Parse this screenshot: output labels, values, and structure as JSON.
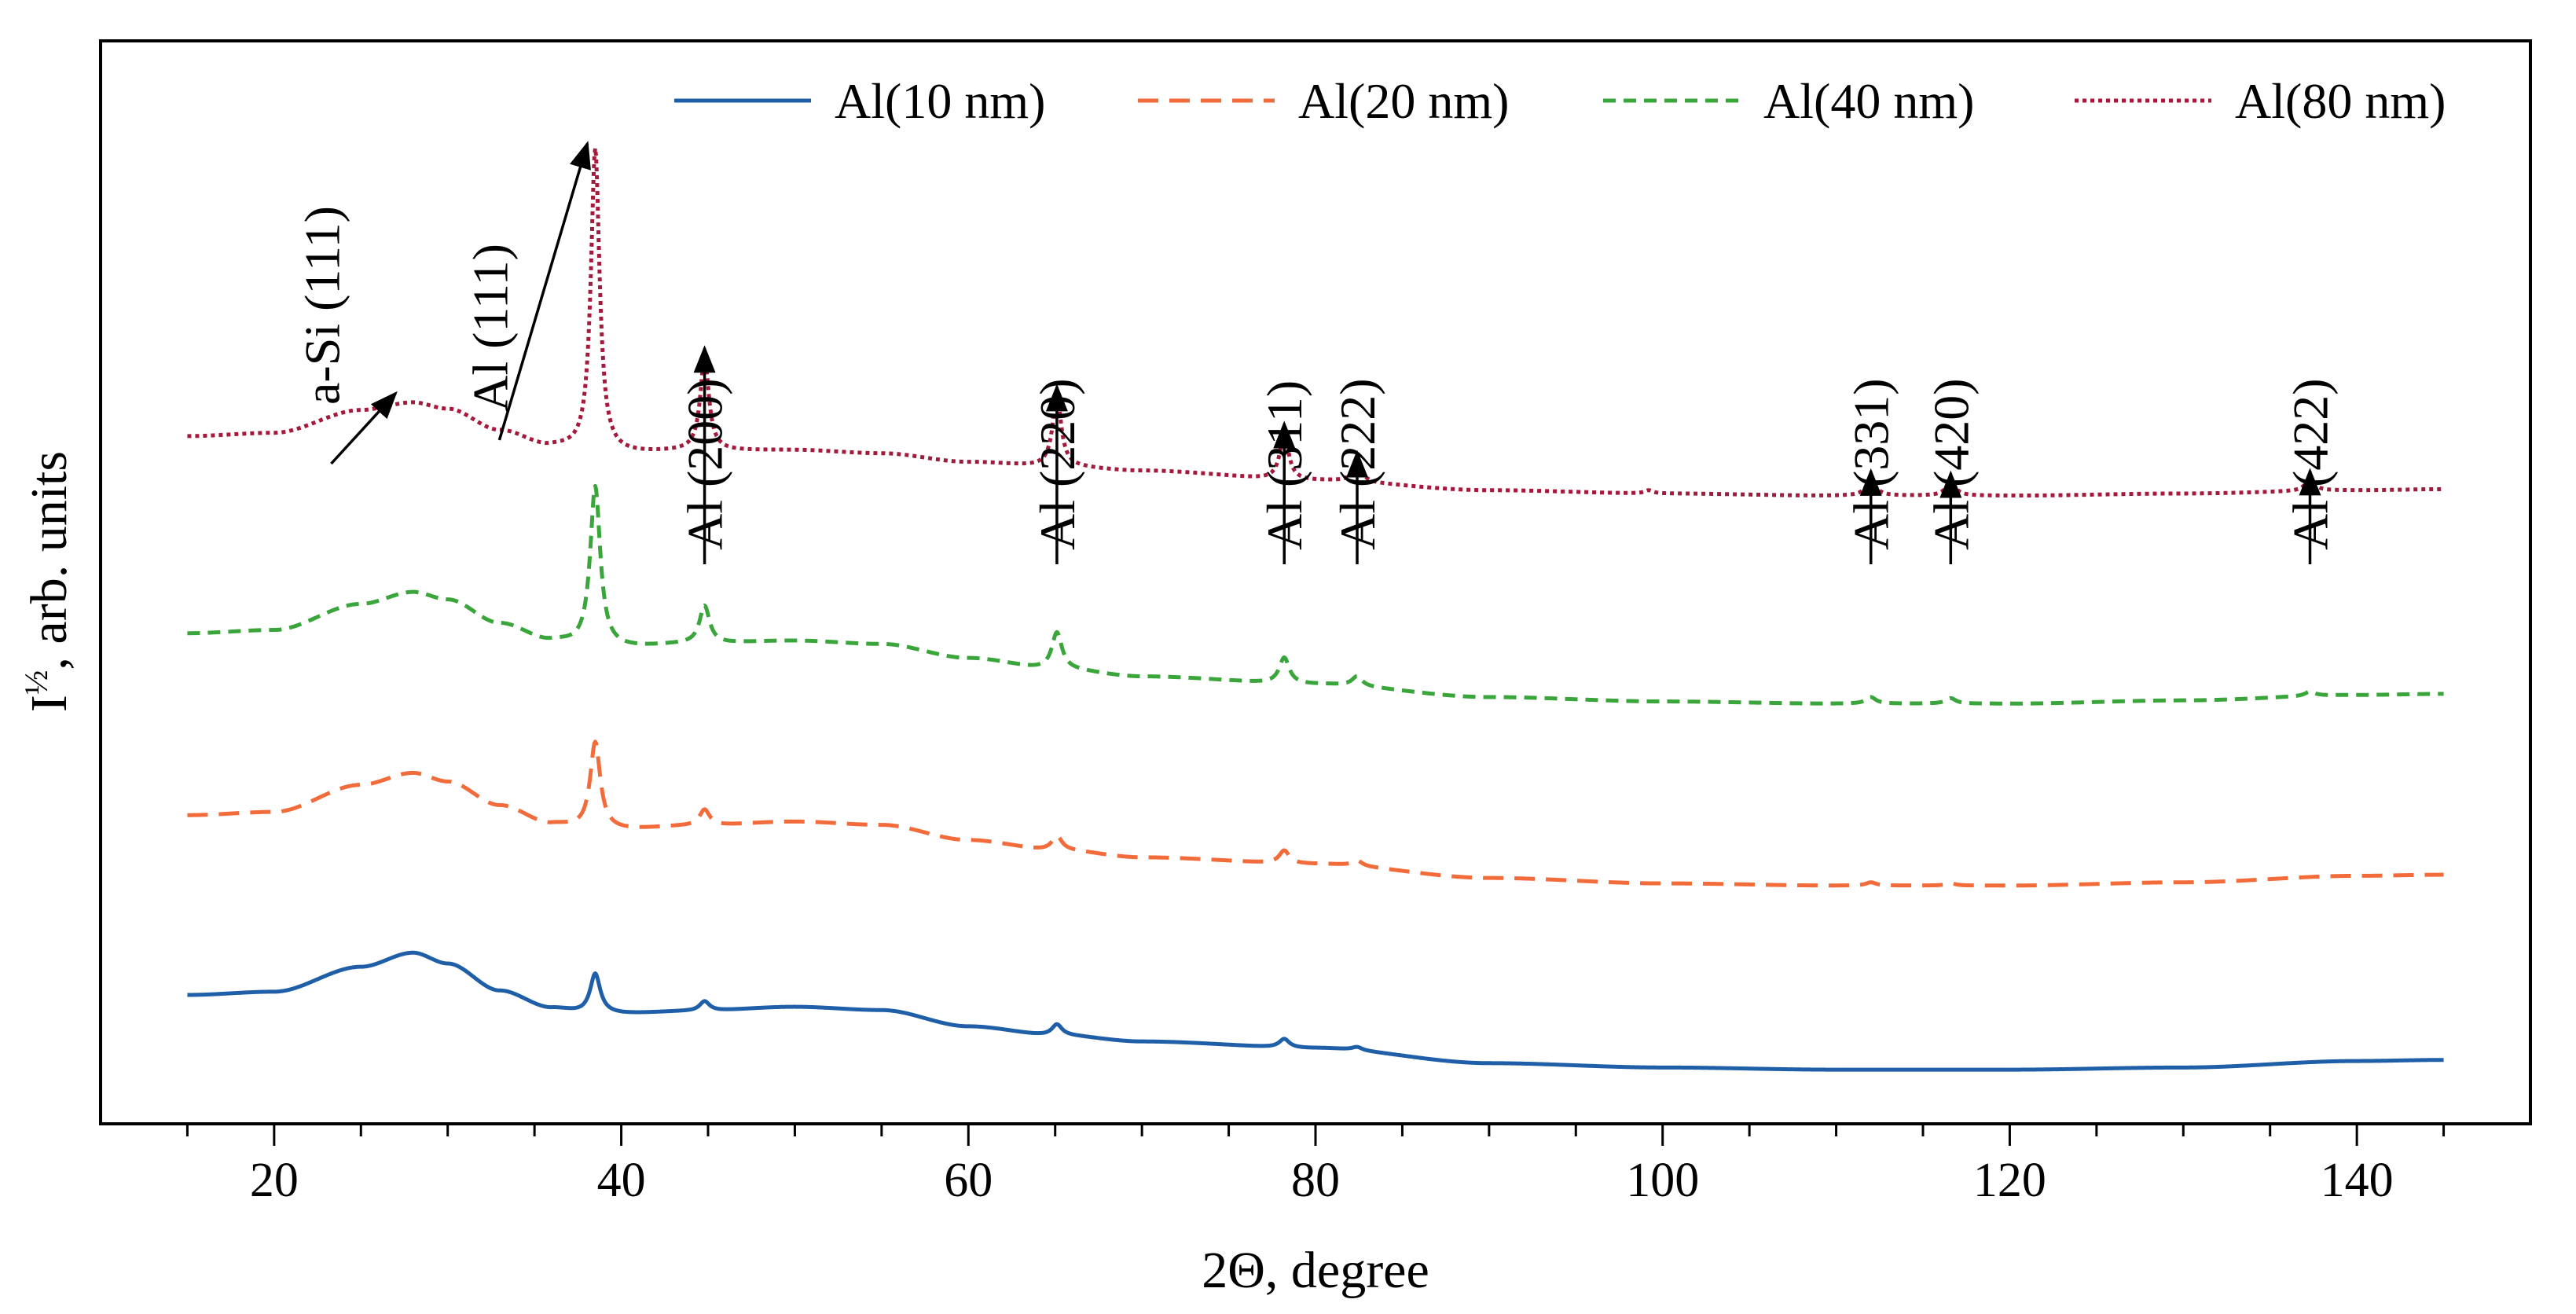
{
  "chart_data": {
    "type": "line",
    "title": "",
    "xlabel": "2Θ, degree",
    "ylabel_main": "I",
    "ylabel_sup": "½",
    "ylabel_rest": ", arb. units",
    "xlim": [
      10,
      150
    ],
    "xticks": [
      20,
      40,
      60,
      80,
      100,
      120,
      140
    ],
    "xtick_labels": [
      "20",
      "40",
      "60",
      "80",
      "100",
      "120",
      "140"
    ],
    "x_minor_step": 5,
    "ylim": [
      0,
      100
    ],
    "y_ticks_shown": false,
    "grid": false,
    "legend_position": "top-right",
    "x_range_data": [
      15,
      145
    ],
    "series": [
      {
        "name": "Al(10 nm)",
        "color": "#1f5fa8",
        "dash": "solid",
        "baseline": [
          [
            15,
            11.9
          ],
          [
            20,
            12.2
          ],
          [
            25,
            14.5
          ],
          [
            28,
            15.8
          ],
          [
            30,
            14.8
          ],
          [
            33,
            12.3
          ],
          [
            36,
            10.7
          ],
          [
            38,
            10.3
          ],
          [
            40,
            10.2
          ],
          [
            44,
            10.4
          ],
          [
            50,
            10.8
          ],
          [
            55,
            10.5
          ],
          [
            60,
            9.0
          ],
          [
            65,
            8.2
          ],
          [
            70,
            7.6
          ],
          [
            80,
            7.0
          ],
          [
            90,
            5.6
          ],
          [
            100,
            5.2
          ],
          [
            110,
            5.0
          ],
          [
            120,
            5.0
          ],
          [
            130,
            5.2
          ],
          [
            140,
            5.8
          ],
          [
            145,
            5.9
          ]
        ],
        "peaks": [
          [
            38.5,
            3.6,
            0.35
          ],
          [
            44.8,
            0.9,
            0.35
          ],
          [
            65.1,
            1.0,
            0.35
          ],
          [
            78.2,
            0.8,
            0.35
          ],
          [
            82.4,
            0.3,
            0.35
          ]
        ]
      },
      {
        "name": "Al(20 nm)",
        "color": "#f26b3a",
        "dash": "long-dash",
        "baseline": [
          [
            15,
            28.5
          ],
          [
            20,
            28.8
          ],
          [
            25,
            31.3
          ],
          [
            28,
            32.4
          ],
          [
            30,
            31.6
          ],
          [
            33,
            29.4
          ],
          [
            36,
            27.7
          ],
          [
            38,
            27.3
          ],
          [
            40,
            27.2
          ],
          [
            44,
            27.5
          ],
          [
            50,
            27.9
          ],
          [
            55,
            27.6
          ],
          [
            60,
            26.2
          ],
          [
            65,
            25.3
          ],
          [
            70,
            24.6
          ],
          [
            80,
            24.0
          ],
          [
            90,
            22.7
          ],
          [
            100,
            22.2
          ],
          [
            110,
            22.0
          ],
          [
            120,
            22.0
          ],
          [
            130,
            22.3
          ],
          [
            140,
            22.9
          ],
          [
            145,
            23.0
          ]
        ],
        "peaks": [
          [
            38.5,
            8.0,
            0.35
          ],
          [
            44.8,
            1.5,
            0.35
          ],
          [
            65.1,
            1.3,
            0.35
          ],
          [
            78.2,
            1.2,
            0.35
          ],
          [
            82.4,
            0.5,
            0.35
          ],
          [
            112.0,
            0.3,
            0.35
          ],
          [
            116.6,
            0.2,
            0.35
          ]
        ]
      },
      {
        "name": "Al(40 nm)",
        "color": "#3aa53a",
        "dash": "medium-dash",
        "baseline": [
          [
            15,
            45.3
          ],
          [
            20,
            45.6
          ],
          [
            25,
            48.0
          ],
          [
            28,
            49.1
          ],
          [
            30,
            48.4
          ],
          [
            33,
            46.2
          ],
          [
            36,
            44.6
          ],
          [
            38,
            44.1
          ],
          [
            40,
            44.0
          ],
          [
            44,
            44.3
          ],
          [
            50,
            44.6
          ],
          [
            55,
            44.3
          ],
          [
            60,
            43.0
          ],
          [
            65,
            42.0
          ],
          [
            70,
            41.3
          ],
          [
            80,
            40.6
          ],
          [
            90,
            39.4
          ],
          [
            100,
            39.0
          ],
          [
            110,
            38.8
          ],
          [
            120,
            38.8
          ],
          [
            130,
            39.1
          ],
          [
            140,
            39.6
          ],
          [
            145,
            39.7
          ]
        ],
        "peaks": [
          [
            38.5,
            14.8,
            0.35
          ],
          [
            44.8,
            3.5,
            0.35
          ],
          [
            65.1,
            3.4,
            0.35
          ],
          [
            78.2,
            2.4,
            0.35
          ],
          [
            82.4,
            0.9,
            0.35
          ],
          [
            112.0,
            0.6,
            0.35
          ],
          [
            116.6,
            0.5,
            0.35
          ],
          [
            137.3,
            0.4,
            0.35
          ]
        ]
      },
      {
        "name": "Al(80 nm)",
        "color": "#a51a3c",
        "dash": "dotted",
        "baseline": [
          [
            15,
            63.5
          ],
          [
            20,
            63.8
          ],
          [
            25,
            65.9
          ],
          [
            28,
            66.6
          ],
          [
            30,
            66.0
          ],
          [
            33,
            64.0
          ],
          [
            36,
            62.5
          ],
          [
            38,
            62.1
          ],
          [
            40,
            61.9
          ],
          [
            44,
            62.1
          ],
          [
            50,
            62.2
          ],
          [
            55,
            61.9
          ],
          [
            60,
            61.1
          ],
          [
            65,
            60.7
          ],
          [
            70,
            60.3
          ],
          [
            80,
            59.4
          ],
          [
            90,
            58.5
          ],
          [
            100,
            58.2
          ],
          [
            110,
            58.0
          ],
          [
            120,
            58.0
          ],
          [
            130,
            58.2
          ],
          [
            140,
            58.5
          ],
          [
            145,
            58.6
          ]
        ],
        "peaks": [
          [
            38.5,
            28.0,
            0.3
          ],
          [
            44.8,
            8.6,
            0.3
          ],
          [
            65.1,
            6.5,
            0.3
          ],
          [
            78.2,
            4.3,
            0.3
          ],
          [
            82.4,
            1.8,
            0.3
          ],
          [
            112.0,
            1.4,
            0.35
          ],
          [
            116.6,
            1.2,
            0.35
          ],
          [
            137.3,
            1.0,
            0.35
          ],
          [
            99.2,
            0.3,
            0.3
          ]
        ]
      }
    ],
    "annotations": [
      {
        "label": "a-Si (111)",
        "x": 27.0
      },
      {
        "label": "Al (111)",
        "x": 38.5
      },
      {
        "label": "Al (200)",
        "x": 44.8
      },
      {
        "label": "Al (220)",
        "x": 65.1
      },
      {
        "label": "Al (311)",
        "x": 78.2
      },
      {
        "label": "Al (222)",
        "x": 82.4
      },
      {
        "label": "Al (331)",
        "x": 112.0
      },
      {
        "label": "Al (420)",
        "x": 116.6
      },
      {
        "label": "Al (422)",
        "x": 137.3
      }
    ]
  }
}
